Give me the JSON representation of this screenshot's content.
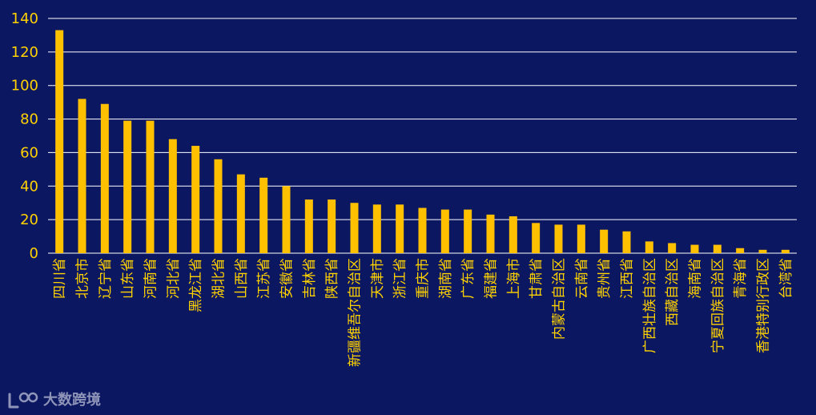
{
  "chart_data": {
    "type": "bar",
    "title": "",
    "xlabel": "",
    "ylabel": "",
    "ylim": [
      0,
      140
    ],
    "yticks": [
      0,
      20,
      40,
      60,
      80,
      100,
      120,
      140
    ],
    "grid": true,
    "legend": "none",
    "categories": [
      "四川省",
      "北京市",
      "辽宁省",
      "山东省",
      "河南省",
      "河北省",
      "黑龙江省",
      "湖北省",
      "山西省",
      "江苏省",
      "安徽省",
      "吉林省",
      "陕西省",
      "新疆维吾尔自治区",
      "天津市",
      "浙江省",
      "重庆市",
      "湖南省",
      "广东省",
      "福建省",
      "上海市",
      "甘肃省",
      "内蒙古自治区",
      "云南省",
      "贵州省",
      "江西省",
      "广西壮族自治区",
      "西藏自治区",
      "海南省",
      "宁夏回族自治区",
      "青海省",
      "香港特别行政区",
      "台湾省"
    ],
    "values": [
      133,
      92,
      89,
      79,
      79,
      68,
      64,
      56,
      47,
      45,
      40,
      32,
      32,
      30,
      29,
      29,
      27,
      26,
      26,
      23,
      22,
      18,
      17,
      17,
      14,
      13,
      7,
      6,
      5,
      5,
      3,
      2,
      2
    ]
  },
  "colors": {
    "background": "#0c1762",
    "bar": "#ffc000",
    "grid": "#ffffff",
    "text": "#ffd200",
    "watermark": "#8f95b8"
  },
  "watermark": {
    "text": "大数跨境",
    "icon": "100-logo-icon"
  }
}
